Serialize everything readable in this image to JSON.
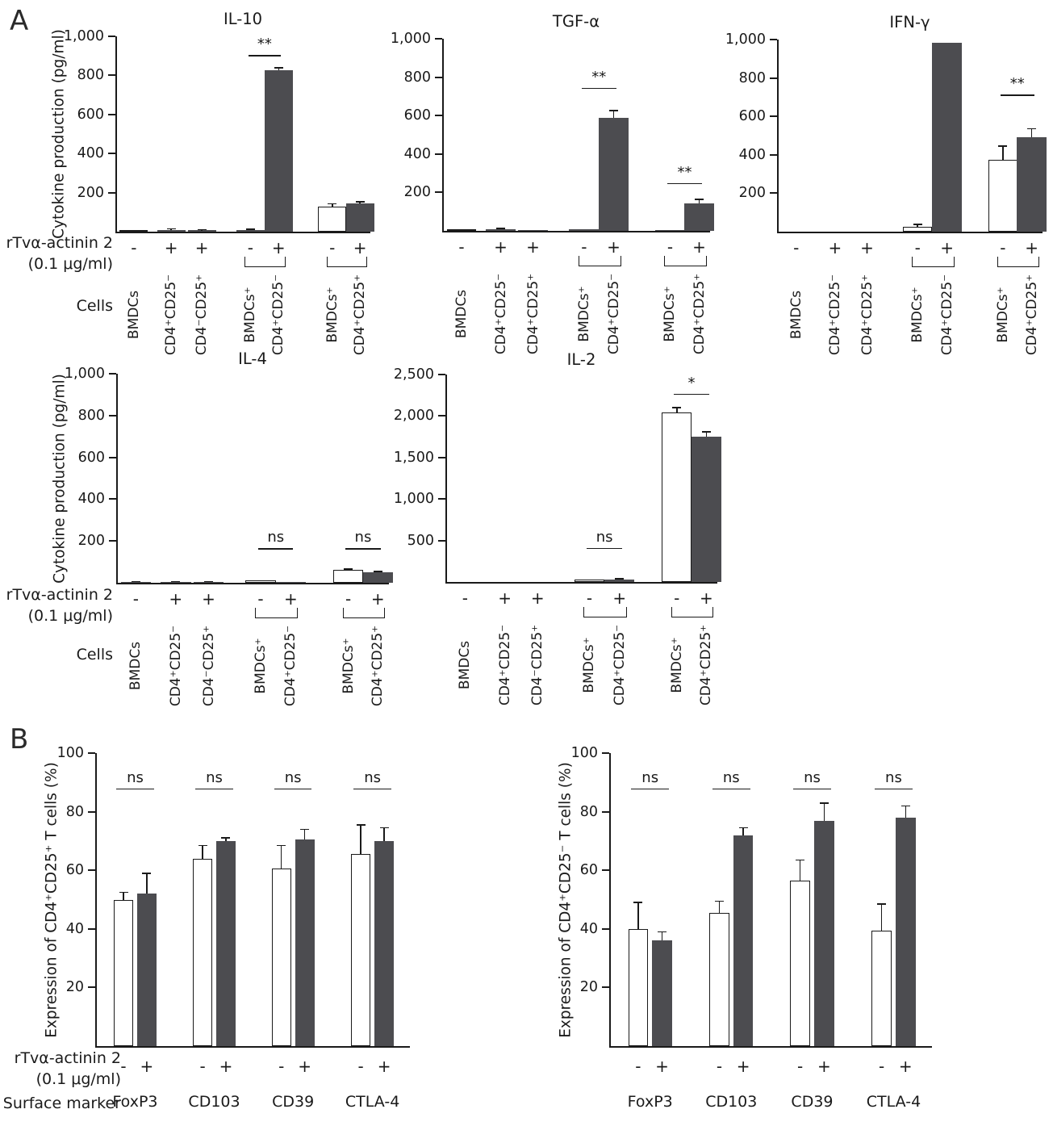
{
  "figure": {
    "panel_a_letter": "A",
    "panel_b_letter": "B",
    "treatment_line1": "rTvα-actinin 2",
    "treatment_line2": "(0.1 μg/ml)",
    "cells_row_label": "Cells",
    "surface_marker_row_label": "Surface marker",
    "colors": {
      "dark_bar": "#4c4c50",
      "white_bar": "#ffffff",
      "axis": "#1a1a1a",
      "text": "#1a1a1a"
    }
  },
  "chart_data": [
    {
      "id": "il10",
      "panel": "A",
      "type": "bar",
      "title": "IL-10",
      "ylabel": "Cytokine production (pg/ml)",
      "ymax": 1000,
      "grid": false,
      "yticks": [
        {
          "v": 200,
          "t": "200"
        },
        {
          "v": 400,
          "t": "400"
        },
        {
          "v": 600,
          "t": "600"
        },
        {
          "v": 800,
          "t": "800"
        },
        {
          "v": 1000,
          "t": "1,000"
        }
      ],
      "groups": [
        {
          "kind": "single",
          "bars": [
            {
              "sign": "-",
              "label": "BMDCs",
              "v": 2,
              "e": 0,
              "fill": "white"
            }
          ]
        },
        {
          "kind": "single",
          "bars": [
            {
              "sign": "+",
              "label": "CD4⁺CD25⁻",
              "v": 10,
              "e": 4,
              "fill": "dark"
            }
          ]
        },
        {
          "kind": "single",
          "bars": [
            {
              "sign": "+",
              "label": "CD4⁻CD25⁺",
              "v": 8,
              "e": 2,
              "fill": "dark"
            }
          ]
        },
        {
          "kind": "pair",
          "sig": {
            "text": "**",
            "v": 905
          },
          "bars": [
            {
              "sign": "-",
              "label": "BMDCs⁺",
              "v": 10,
              "e": 3,
              "fill": "dark"
            },
            {
              "sign": "+",
              "label": "CD4⁺CD25⁻",
              "v": 825,
              "e": 15,
              "fill": "dark"
            }
          ]
        },
        {
          "kind": "pair",
          "bars": [
            {
              "sign": "-",
              "label": "BMDCs⁺",
              "v": 130,
              "e": 12,
              "fill": "white"
            },
            {
              "sign": "+",
              "label": "CD4⁺CD25⁺",
              "v": 145,
              "e": 8,
              "fill": "dark"
            }
          ]
        }
      ]
    },
    {
      "id": "tgfa",
      "panel": "A",
      "type": "bar",
      "title": "TGF-α",
      "ylabel": "",
      "ymax": 1000,
      "grid": false,
      "yticks": [
        {
          "v": 200,
          "t": "200"
        },
        {
          "v": 400,
          "t": "400"
        },
        {
          "v": 600,
          "t": "600"
        },
        {
          "v": 800,
          "t": "800"
        },
        {
          "v": 1000,
          "t": "1,000"
        }
      ],
      "groups": [
        {
          "kind": "single",
          "bars": [
            {
              "sign": "-",
              "label": "BMDCs",
              "v": 3,
              "e": 0,
              "fill": "white"
            }
          ]
        },
        {
          "kind": "single",
          "bars": [
            {
              "sign": "+",
              "label": "CD4⁺CD25⁻",
              "v": 10,
              "e": 3,
              "fill": "dark"
            }
          ]
        },
        {
          "kind": "single",
          "bars": [
            {
              "sign": "+",
              "label": "CD4⁺CD25⁺",
              "v": 5,
              "e": 0,
              "fill": "dark"
            }
          ]
        },
        {
          "kind": "pair",
          "sig": {
            "text": "**",
            "v": 745
          },
          "bars": [
            {
              "sign": "-",
              "label": "BMDCs⁺",
              "v": 10,
              "e": 0,
              "fill": "dark"
            },
            {
              "sign": "+",
              "label": "CD4⁺CD25⁻",
              "v": 590,
              "e": 35,
              "fill": "dark"
            }
          ]
        },
        {
          "kind": "pair",
          "sig": {
            "text": "**",
            "v": 250
          },
          "bars": [
            {
              "sign": "-",
              "label": "BMDCs⁺",
              "v": 5,
              "e": 0,
              "fill": "dark"
            },
            {
              "sign": "+",
              "label": "CD4⁺CD25⁺",
              "v": 145,
              "e": 18,
              "fill": "dark"
            }
          ]
        }
      ]
    },
    {
      "id": "ifng",
      "panel": "A",
      "type": "bar",
      "title": "IFN-γ",
      "ylabel": "",
      "ymax": 1000,
      "grid": false,
      "yticks": [
        {
          "v": 200,
          "t": "200"
        },
        {
          "v": 400,
          "t": "400"
        },
        {
          "v": 600,
          "t": "600"
        },
        {
          "v": 800,
          "t": "800"
        },
        {
          "v": 1000,
          "t": "1,000"
        }
      ],
      "groups": [
        {
          "kind": "single",
          "bars": [
            {
              "sign": "-",
              "label": "BMDCs",
              "v": 0,
              "e": 0,
              "fill": "white"
            }
          ]
        },
        {
          "kind": "single",
          "bars": [
            {
              "sign": "+",
              "label": "CD4⁺CD25⁻",
              "v": 0,
              "e": 0,
              "fill": "dark"
            }
          ]
        },
        {
          "kind": "single",
          "bars": [
            {
              "sign": "+",
              "label": "CD4⁺CD25⁺",
              "v": 0,
              "e": 0,
              "fill": "dark"
            }
          ]
        },
        {
          "kind": "pair",
          "bars": [
            {
              "sign": "-",
              "label": "BMDCs⁺",
              "v": 25,
              "e": 12,
              "fill": "white"
            },
            {
              "sign": "+",
              "label": "CD4⁺CD25⁻",
              "v": 985,
              "e": 0,
              "fill": "dark"
            }
          ]
        },
        {
          "kind": "pair",
          "sig": {
            "text": "**",
            "v": 714
          },
          "bars": [
            {
              "sign": "-",
              "label": "BMDCs⁺",
              "v": 375,
              "e": 70,
              "fill": "white"
            },
            {
              "sign": "+",
              "label": "CD4⁺CD25⁺",
              "v": 490,
              "e": 45,
              "fill": "dark"
            }
          ]
        }
      ]
    },
    {
      "id": "il4",
      "panel": "A",
      "type": "bar",
      "title": "IL-4",
      "ylabel": "Cytokine production (pg/ml)",
      "ymax": 1000,
      "grid": false,
      "yticks": [
        {
          "v": 200,
          "t": "200"
        },
        {
          "v": 400,
          "t": "400"
        },
        {
          "v": 600,
          "t": "600"
        },
        {
          "v": 800,
          "t": "800"
        },
        {
          "v": 1000,
          "t": "1,000"
        }
      ],
      "groups": [
        {
          "kind": "single",
          "bars": [
            {
              "sign": "-",
              "label": "BMDCs",
              "v": 5,
              "e": 1,
              "fill": "dark"
            }
          ]
        },
        {
          "kind": "single",
          "bars": [
            {
              "sign": "+",
              "label": "CD4⁺CD25⁻",
              "v": 5,
              "e": 1,
              "fill": "dark"
            }
          ]
        },
        {
          "kind": "single",
          "bars": [
            {
              "sign": "+",
              "label": "CD4⁻CD25⁺",
              "v": 5,
              "e": 1,
              "fill": "dark"
            }
          ]
        },
        {
          "kind": "pair",
          "sig": {
            "text": "ns",
            "v": 165
          },
          "bars": [
            {
              "sign": "-",
              "label": "BMDCs⁺",
              "v": 10,
              "e": 0,
              "fill": "white"
            },
            {
              "sign": "+",
              "label": "CD4⁺CD25⁻",
              "v": 2,
              "e": 0,
              "fill": "dark"
            }
          ]
        },
        {
          "kind": "pair",
          "sig": {
            "text": "ns",
            "v": 165
          },
          "bars": [
            {
              "sign": "-",
              "label": "BMDCs⁺",
              "v": 60,
              "e": 6,
              "fill": "white"
            },
            {
              "sign": "+",
              "label": "CD4⁺CD25⁺",
              "v": 50,
              "e": 3,
              "fill": "dark"
            }
          ]
        }
      ]
    },
    {
      "id": "il2",
      "panel": "A",
      "type": "bar",
      "title": "IL-2",
      "ylabel": "",
      "ymax": 2500,
      "grid": false,
      "yticks": [
        {
          "v": 500,
          "t": "500"
        },
        {
          "v": 1000,
          "t": "1,000"
        },
        {
          "v": 1500,
          "t": "1,500"
        },
        {
          "v": 2000,
          "t": "2,000"
        },
        {
          "v": 2500,
          "t": "2,500"
        }
      ],
      "groups": [
        {
          "kind": "single",
          "bars": [
            {
              "sign": "-",
              "label": "BMDCs",
              "v": 0,
              "e": 0,
              "fill": "white"
            }
          ]
        },
        {
          "kind": "single",
          "bars": [
            {
              "sign": "+",
              "label": "CD4⁺CD25⁻",
              "v": 0,
              "e": 0,
              "fill": "dark"
            }
          ]
        },
        {
          "kind": "single",
          "bars": [
            {
              "sign": "+",
              "label": "CD4⁻CD25⁺",
              "v": 0,
              "e": 0,
              "fill": "dark"
            }
          ]
        },
        {
          "kind": "pair",
          "sig": {
            "text": "ns",
            "v": 410
          },
          "bars": [
            {
              "sign": "-",
              "label": "BMDCs⁺",
              "v": 25,
              "e": 0,
              "fill": "white"
            },
            {
              "sign": "+",
              "label": "CD4⁺CD25⁻",
              "v": 30,
              "e": 10,
              "fill": "dark"
            }
          ]
        },
        {
          "kind": "pair",
          "sig": {
            "text": "*",
            "v": 2270
          },
          "bars": [
            {
              "sign": "-",
              "label": "BMDCs⁺",
              "v": 2040,
              "e": 60,
              "fill": "white"
            },
            {
              "sign": "+",
              "label": "CD4⁺CD25⁺",
              "v": 1755,
              "e": 55,
              "fill": "dark"
            }
          ]
        }
      ]
    },
    {
      "id": "bL",
      "panel": "B",
      "type": "bar",
      "title": "",
      "ylabel": "Expression of CD4⁺CD25⁺ T cells (%)",
      "ymax": 100,
      "grid": false,
      "yticks": [
        {
          "v": 20,
          "t": "20"
        },
        {
          "v": 40,
          "t": "40"
        },
        {
          "v": 60,
          "t": "60"
        },
        {
          "v": 80,
          "t": "80"
        },
        {
          "v": 100,
          "t": "100"
        }
      ],
      "groups": [
        {
          "marker": "FoxP3",
          "sig": {
            "text": "ns",
            "v": 88
          },
          "bars": [
            {
              "sign": "-",
              "v": 50,
              "e": 2.5,
              "fill": "white"
            },
            {
              "sign": "+",
              "v": 52,
              "e": 7,
              "fill": "dark"
            }
          ]
        },
        {
          "marker": "CD103",
          "sig": {
            "text": "ns",
            "v": 88
          },
          "bars": [
            {
              "sign": "-",
              "v": 64,
              "e": 4.5,
              "fill": "white"
            },
            {
              "sign": "+",
              "v": 70,
              "e": 1,
              "fill": "dark"
            }
          ]
        },
        {
          "marker": "CD39",
          "sig": {
            "text": "ns",
            "v": 88
          },
          "bars": [
            {
              "sign": "-",
              "v": 60.5,
              "e": 8,
              "fill": "white"
            },
            {
              "sign": "+",
              "v": 70.5,
              "e": 3.5,
              "fill": "dark"
            }
          ]
        },
        {
          "marker": "CTLA-4",
          "sig": {
            "text": "ns",
            "v": 88
          },
          "bars": [
            {
              "sign": "-",
              "v": 65.5,
              "e": 10,
              "fill": "white"
            },
            {
              "sign": "+",
              "v": 70,
              "e": 4.5,
              "fill": "dark"
            }
          ]
        }
      ]
    },
    {
      "id": "bR",
      "panel": "B",
      "type": "bar",
      "title": "",
      "ylabel": "Expression of CD4⁺CD25⁻ T cells (%)",
      "ymax": 100,
      "grid": false,
      "yticks": [
        {
          "v": 20,
          "t": "20"
        },
        {
          "v": 40,
          "t": "40"
        },
        {
          "v": 60,
          "t": "60"
        },
        {
          "v": 80,
          "t": "80"
        },
        {
          "v": 100,
          "t": "100"
        }
      ],
      "groups": [
        {
          "marker": "FoxP3",
          "sig": {
            "text": "ns",
            "v": 88
          },
          "bars": [
            {
              "sign": "-",
              "v": 40,
              "e": 9,
              "fill": "white"
            },
            {
              "sign": "+",
              "v": 36,
              "e": 3,
              "fill": "dark"
            }
          ]
        },
        {
          "marker": "CD103",
          "sig": {
            "text": "ns",
            "v": 88
          },
          "bars": [
            {
              "sign": "-",
              "v": 45.5,
              "e": 4,
              "fill": "white"
            },
            {
              "sign": "+",
              "v": 72,
              "e": 2.5,
              "fill": "dark"
            }
          ]
        },
        {
          "marker": "CD39",
          "sig": {
            "text": "ns",
            "v": 88
          },
          "bars": [
            {
              "sign": "-",
              "v": 56.5,
              "e": 7,
              "fill": "white"
            },
            {
              "sign": "+",
              "v": 77,
              "e": 6,
              "fill": "dark"
            }
          ]
        },
        {
          "marker": "CTLA-4",
          "sig": {
            "text": "ns",
            "v": 88
          },
          "bars": [
            {
              "sign": "-",
              "v": 39.5,
              "e": 9,
              "fill": "white"
            },
            {
              "sign": "+",
              "v": 78,
              "e": 4,
              "fill": "dark"
            }
          ]
        }
      ]
    }
  ]
}
